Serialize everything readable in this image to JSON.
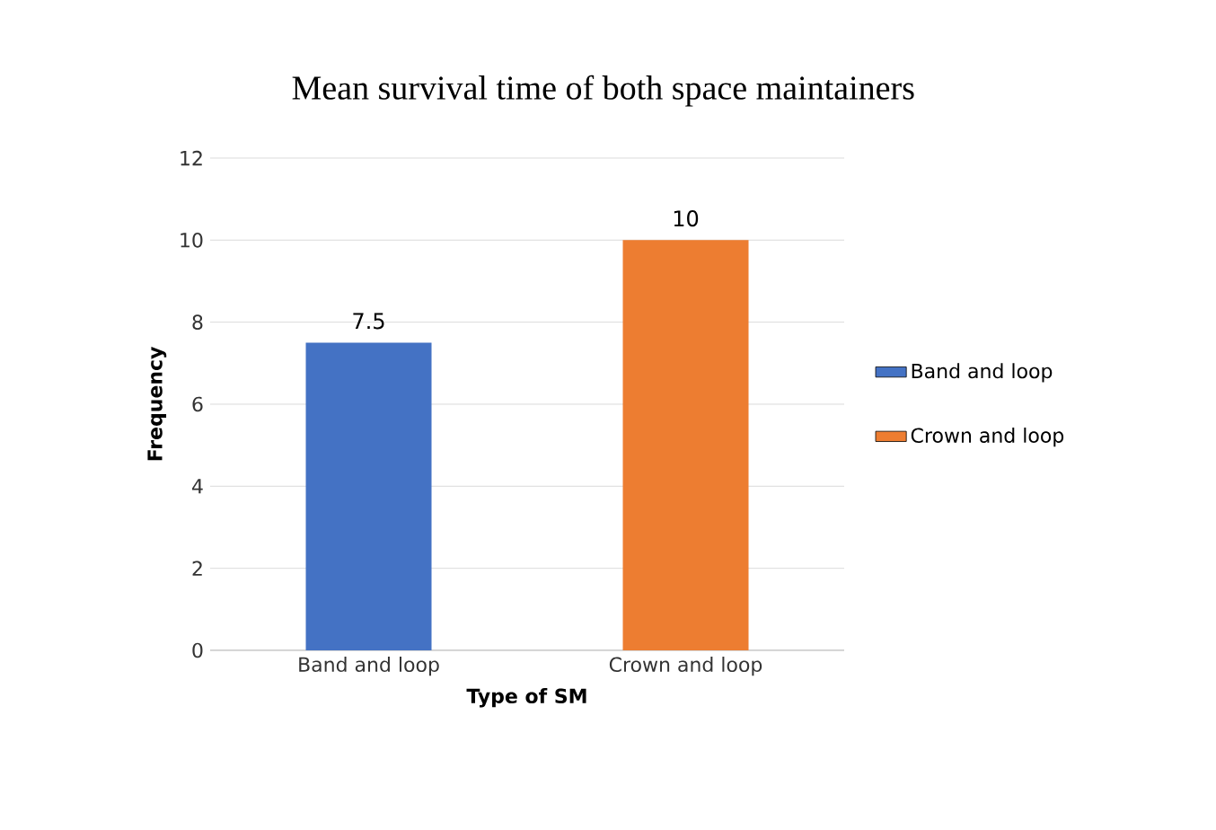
{
  "chart_data": {
    "type": "bar",
    "title": "Mean survival time of both space maintainers",
    "xlabel": "Type of SM",
    "ylabel": "Frequency",
    "categories": [
      "Band and loop",
      "Crown and loop"
    ],
    "series": [
      {
        "name": "Band and loop",
        "color": "#4472c4",
        "values": [
          7.5,
          null
        ]
      },
      {
        "name": "Crown and loop",
        "color": "#ed7d31",
        "values": [
          null,
          10
        ]
      }
    ],
    "ylim": [
      0,
      12
    ],
    "yticks": [
      0,
      2,
      4,
      6,
      8,
      10,
      12
    ],
    "grid": "y",
    "legend": "right",
    "data_labels": true
  }
}
